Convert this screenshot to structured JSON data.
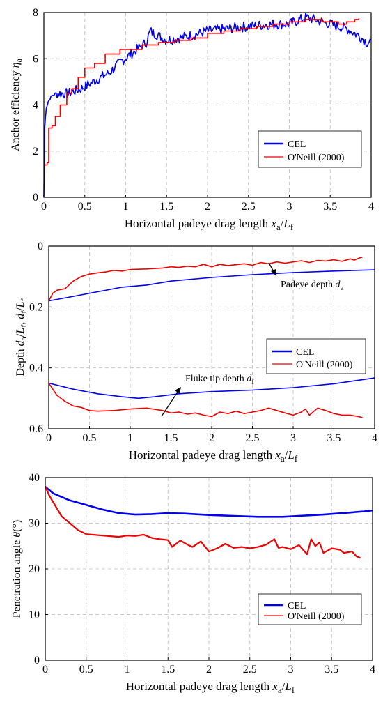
{
  "colors": {
    "cel": "#0000ee",
    "oneill": "#ee0000"
  },
  "chart_data": [
    {
      "type": "line",
      "xlabel_main": "Horizontal padeye drag length ",
      "xlabel_var": "x",
      "xlabel_sub": "a",
      "xlabel_slash": "/",
      "xlabel_var2": "L",
      "xlabel_sub2": "f",
      "ylabel_main": "Anchor efficiency ",
      "ylabel_var": "η",
      "ylabel_sub": "a",
      "xlim": [
        0,
        4
      ],
      "ylim": [
        0,
        8
      ],
      "xticks": [
        "0",
        "0.5",
        "1",
        "1.5",
        "2",
        "2.5",
        "3",
        "3.5",
        "4"
      ],
      "yticks": [
        "0",
        "2",
        "4",
        "6",
        "8"
      ],
      "grid": true,
      "legend_position": "lower-right",
      "series": [
        {
          "name": "CEL",
          "color": "#0000ee",
          "noise": 0.22,
          "points": [
            [
              0,
              0
            ],
            [
              0.01,
              3.0
            ],
            [
              0.03,
              3.9
            ],
            [
              0.06,
              4.2
            ],
            [
              0.1,
              4.4
            ],
            [
              0.15,
              4.5
            ],
            [
              0.3,
              4.5
            ],
            [
              0.45,
              4.7
            ],
            [
              0.6,
              5.0
            ],
            [
              0.8,
              5.4
            ],
            [
              0.95,
              5.9
            ],
            [
              1.1,
              6.3
            ],
            [
              1.25,
              6.7
            ],
            [
              1.3,
              7.2
            ],
            [
              1.5,
              6.8
            ],
            [
              1.8,
              7.0
            ],
            [
              2.0,
              7.2
            ],
            [
              2.5,
              7.4
            ],
            [
              2.8,
              7.5
            ],
            [
              3.0,
              7.5
            ],
            [
              3.2,
              7.8
            ],
            [
              3.5,
              7.5
            ],
            [
              3.7,
              7.3
            ],
            [
              3.85,
              7.0
            ],
            [
              3.95,
              6.7
            ],
            [
              4.0,
              6.8
            ]
          ]
        },
        {
          "name": "O'Neill (2000)",
          "color": "#ee0000",
          "steps": [
            [
              0,
              1.4
            ],
            [
              0.04,
              1.5
            ],
            [
              0.06,
              3.0
            ],
            [
              0.1,
              3.1
            ],
            [
              0.14,
              3.5
            ],
            [
              0.2,
              4.0
            ],
            [
              0.28,
              4.5
            ],
            [
              0.34,
              4.7
            ],
            [
              0.42,
              5.2
            ],
            [
              0.5,
              5.6
            ],
            [
              0.62,
              5.8
            ],
            [
              0.75,
              6.2
            ],
            [
              0.88,
              6.2
            ],
            [
              0.93,
              6.4
            ],
            [
              1.05,
              6.4
            ],
            [
              1.2,
              6.6
            ],
            [
              1.4,
              6.7
            ],
            [
              1.6,
              6.8
            ],
            [
              1.8,
              6.9
            ],
            [
              2.0,
              7.1
            ],
            [
              2.2,
              7.2
            ],
            [
              2.4,
              7.3
            ],
            [
              2.6,
              7.4
            ],
            [
              2.8,
              7.5
            ],
            [
              3.0,
              7.6
            ],
            [
              3.2,
              7.7
            ],
            [
              3.4,
              7.6
            ],
            [
              3.6,
              7.5
            ],
            [
              3.7,
              7.6
            ],
            [
              3.8,
              7.7
            ],
            [
              3.85,
              7.75
            ]
          ]
        }
      ]
    },
    {
      "type": "line",
      "xlabel_main": "Horizontal padeye drag length ",
      "xlabel_var": "x",
      "xlabel_sub": "a",
      "xlabel_slash": "/",
      "xlabel_var2": "L",
      "xlabel_sub2": "f",
      "ylabel_main": "Depth ",
      "ylabel_var": "d",
      "ylabel_sub": "a",
      "ylabel_slash": "/",
      "ylabel_var2": "L",
      "ylabel_sub2": "f",
      "ylabel_comma": ", ",
      "ylabel_var3": "d",
      "ylabel_sub3": "f",
      "ylabel_slash2": "/",
      "ylabel_var4": "L",
      "ylabel_sub4": "f",
      "xlim": [
        0,
        4
      ],
      "ylim": [
        0,
        0.6
      ],
      "y_inverted": true,
      "xticks": [
        "0",
        "0.5",
        "1",
        "1.5",
        "2",
        "2.5",
        "3",
        "3.5",
        "4"
      ],
      "yticks": [
        "0",
        "0.2",
        "0.4",
        "0.6"
      ],
      "grid": true,
      "legend_position": "right",
      "annotations": [
        {
          "text_main": "Padeye depth ",
          "text_var": "d",
          "text_sub": "a"
        },
        {
          "text_main": "Fluke tip depth ",
          "text_var": "d",
          "text_sub": "f"
        }
      ],
      "series": [
        {
          "name": "CEL",
          "color": "#0000ee",
          "group": "padeye",
          "points": [
            [
              0,
              0.18
            ],
            [
              0.3,
              0.165
            ],
            [
              0.6,
              0.15
            ],
            [
              0.9,
              0.135
            ],
            [
              1.2,
              0.128
            ],
            [
              1.5,
              0.115
            ],
            [
              2.0,
              0.103
            ],
            [
              2.5,
              0.094
            ],
            [
              3.0,
              0.087
            ],
            [
              3.5,
              0.082
            ],
            [
              4.0,
              0.078
            ]
          ]
        },
        {
          "name": "CEL",
          "color": "#0000ee",
          "group": "fluke",
          "points": [
            [
              0,
              0.45
            ],
            [
              0.3,
              0.47
            ],
            [
              0.6,
              0.485
            ],
            [
              0.9,
              0.495
            ],
            [
              1.1,
              0.5
            ],
            [
              1.3,
              0.495
            ],
            [
              1.6,
              0.485
            ],
            [
              2.0,
              0.478
            ],
            [
              2.5,
              0.473
            ],
            [
              3.0,
              0.465
            ],
            [
              3.5,
              0.452
            ],
            [
              4.0,
              0.433
            ]
          ]
        },
        {
          "name": "O'Neill (2000)",
          "color": "#ee0000",
          "group": "padeye",
          "points": [
            [
              0,
              0.18
            ],
            [
              0.05,
              0.155
            ],
            [
              0.1,
              0.145
            ],
            [
              0.2,
              0.14
            ],
            [
              0.3,
              0.115
            ],
            [
              0.4,
              0.1
            ],
            [
              0.5,
              0.092
            ],
            [
              0.6,
              0.088
            ],
            [
              0.7,
              0.085
            ],
            [
              0.8,
              0.08
            ],
            [
              0.9,
              0.082
            ],
            [
              1.0,
              0.077
            ],
            [
              1.2,
              0.075
            ],
            [
              1.4,
              0.072
            ],
            [
              1.5,
              0.068
            ],
            [
              1.6,
              0.07
            ],
            [
              1.7,
              0.066
            ],
            [
              1.8,
              0.068
            ],
            [
              1.9,
              0.06
            ],
            [
              2.0,
              0.068
            ],
            [
              2.1,
              0.06
            ],
            [
              2.2,
              0.064
            ],
            [
              2.4,
              0.058
            ],
            [
              2.5,
              0.063
            ],
            [
              2.6,
              0.054
            ],
            [
              2.7,
              0.058
            ],
            [
              2.8,
              0.052
            ],
            [
              2.9,
              0.056
            ],
            [
              3.0,
              0.052
            ],
            [
              3.1,
              0.048
            ],
            [
              3.2,
              0.054
            ],
            [
              3.3,
              0.047
            ],
            [
              3.4,
              0.049
            ],
            [
              3.5,
              0.045
            ],
            [
              3.6,
              0.05
            ],
            [
              3.7,
              0.042
            ],
            [
              3.75,
              0.046
            ],
            [
              3.8,
              0.04
            ],
            [
              3.85,
              0.036
            ]
          ]
        },
        {
          "name": "O'Neill (2000)",
          "color": "#ee0000",
          "group": "fluke",
          "points": [
            [
              0,
              0.45
            ],
            [
              0.05,
              0.47
            ],
            [
              0.1,
              0.49
            ],
            [
              0.2,
              0.51
            ],
            [
              0.3,
              0.525
            ],
            [
              0.4,
              0.53
            ],
            [
              0.5,
              0.54
            ],
            [
              0.6,
              0.542
            ],
            [
              0.8,
              0.54
            ],
            [
              1.0,
              0.535
            ],
            [
              1.2,
              0.532
            ],
            [
              1.4,
              0.54
            ],
            [
              1.5,
              0.548
            ],
            [
              1.6,
              0.545
            ],
            [
              1.7,
              0.552
            ],
            [
              1.8,
              0.548
            ],
            [
              1.9,
              0.555
            ],
            [
              2.0,
              0.56
            ],
            [
              2.1,
              0.545
            ],
            [
              2.2,
              0.55
            ],
            [
              2.3,
              0.542
            ],
            [
              2.4,
              0.55
            ],
            [
              2.5,
              0.545
            ],
            [
              2.6,
              0.54
            ],
            [
              2.7,
              0.532
            ],
            [
              2.8,
              0.54
            ],
            [
              2.9,
              0.548
            ],
            [
              3.0,
              0.555
            ],
            [
              3.1,
              0.545
            ],
            [
              3.15,
              0.535
            ],
            [
              3.2,
              0.555
            ],
            [
              3.3,
              0.532
            ],
            [
              3.4,
              0.54
            ],
            [
              3.5,
              0.55
            ],
            [
              3.6,
              0.555
            ],
            [
              3.7,
              0.555
            ],
            [
              3.8,
              0.56
            ],
            [
              3.85,
              0.563
            ]
          ]
        }
      ]
    },
    {
      "type": "line",
      "xlabel_main": "Horizontal padeye drag length ",
      "xlabel_var": "x",
      "xlabel_sub": "a",
      "xlabel_slash": "/",
      "xlabel_var2": "L",
      "xlabel_sub2": "f",
      "ylabel_main": "Penetration angle ",
      "ylabel_var": "θ",
      "ylabel_unit": "(°)",
      "xlim": [
        0,
        4
      ],
      "ylim": [
        0,
        40
      ],
      "xticks": [
        "0",
        "0.5",
        "1",
        "1.5",
        "2",
        "2.5",
        "3",
        "3.5",
        "4"
      ],
      "yticks": [
        "0",
        "10",
        "20",
        "30",
        "40"
      ],
      "grid": true,
      "legend_position": "lower-right",
      "series": [
        {
          "name": "CEL",
          "color": "#0000ee",
          "width": 2.6,
          "points": [
            [
              0,
              38
            ],
            [
              0.1,
              36.5
            ],
            [
              0.3,
              35
            ],
            [
              0.5,
              34
            ],
            [
              0.7,
              33
            ],
            [
              0.9,
              32.2
            ],
            [
              1.1,
              31.9
            ],
            [
              1.3,
              32
            ],
            [
              1.5,
              32.2
            ],
            [
              1.7,
              32.1
            ],
            [
              2.0,
              31.8
            ],
            [
              2.3,
              31.6
            ],
            [
              2.6,
              31.4
            ],
            [
              2.9,
              31.4
            ],
            [
              3.1,
              31.6
            ],
            [
              3.4,
              31.9
            ],
            [
              3.7,
              32.3
            ],
            [
              3.9,
              32.6
            ],
            [
              4.0,
              32.8
            ]
          ]
        },
        {
          "name": "O'Neill (2000)",
          "color": "#ee0000",
          "width": 2.2,
          "points": [
            [
              0,
              38
            ],
            [
              0.05,
              36
            ],
            [
              0.1,
              34.5
            ],
            [
              0.2,
              31.5
            ],
            [
              0.3,
              30
            ],
            [
              0.4,
              28.5
            ],
            [
              0.5,
              27.6
            ],
            [
              0.7,
              27.3
            ],
            [
              0.9,
              27
            ],
            [
              1.0,
              27.3
            ],
            [
              1.1,
              27.2
            ],
            [
              1.2,
              27.5
            ],
            [
              1.3,
              26.8
            ],
            [
              1.4,
              26.5
            ],
            [
              1.5,
              26.3
            ],
            [
              1.55,
              24.8
            ],
            [
              1.65,
              26.2
            ],
            [
              1.75,
              25.2
            ],
            [
              1.8,
              24.8
            ],
            [
              1.9,
              26
            ],
            [
              2.0,
              23.8
            ],
            [
              2.1,
              24.5
            ],
            [
              2.2,
              25.5
            ],
            [
              2.3,
              24.6
            ],
            [
              2.4,
              24.8
            ],
            [
              2.5,
              24.5
            ],
            [
              2.6,
              24.8
            ],
            [
              2.7,
              25.3
            ],
            [
              2.8,
              26.5
            ],
            [
              2.85,
              24.6
            ],
            [
              2.9,
              24.8
            ],
            [
              3.0,
              24.3
            ],
            [
              3.1,
              25.2
            ],
            [
              3.2,
              23.2
            ],
            [
              3.25,
              26.5
            ],
            [
              3.3,
              25
            ],
            [
              3.35,
              25.8
            ],
            [
              3.4,
              23.5
            ],
            [
              3.5,
              24.5
            ],
            [
              3.6,
              24.2
            ],
            [
              3.65,
              23.5
            ],
            [
              3.75,
              23.8
            ],
            [
              3.8,
              22.8
            ],
            [
              3.85,
              22.4
            ]
          ]
        }
      ]
    }
  ]
}
